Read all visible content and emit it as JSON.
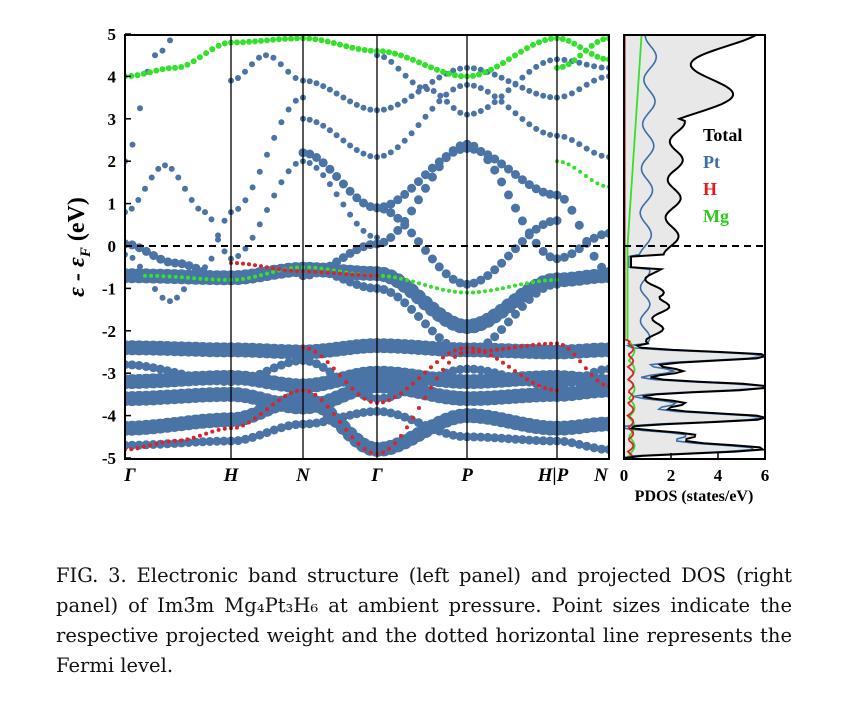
{
  "figure": {
    "band_panel": {
      "ylabel": "ε - ε",
      "ylabel_sub": "F",
      "ylabel_unit": " (eV)",
      "yticks": [
        "5",
        "4",
        "3",
        "2",
        "1",
        "0",
        "-1",
        "-2",
        "-3",
        "-4",
        "-5"
      ],
      "kpoints": [
        "Γ",
        "H",
        "N",
        "Γ",
        "P",
        "H|P",
        "N"
      ]
    },
    "dos_panel": {
      "xlabel": "PDOS (states/eV)",
      "xticks": [
        "0",
        "2",
        "4",
        "6"
      ],
      "legend": [
        {
          "label": "Total",
          "color": "#000000"
        },
        {
          "label": "Pt",
          "color": "#3a6ea5"
        },
        {
          "label": "H",
          "color": "#e41a1c"
        },
        {
          "label": "Mg",
          "color": "#2ecc1a"
        }
      ]
    },
    "colors": {
      "pt": "#4a73a6",
      "h": "#d9252a",
      "mg": "#33e02a",
      "dos_fill": "#e8e8e8"
    }
  },
  "caption": {
    "label": "FIG. 3.",
    "text": " Electronic band structure (left panel) and projected DOS (right panel) of Im3̄m Mg₄Pt₃H₆ at ambient pressure. Point sizes indicate the respective projected weight and the dotted horizontal line represents the Fermi level."
  }
}
